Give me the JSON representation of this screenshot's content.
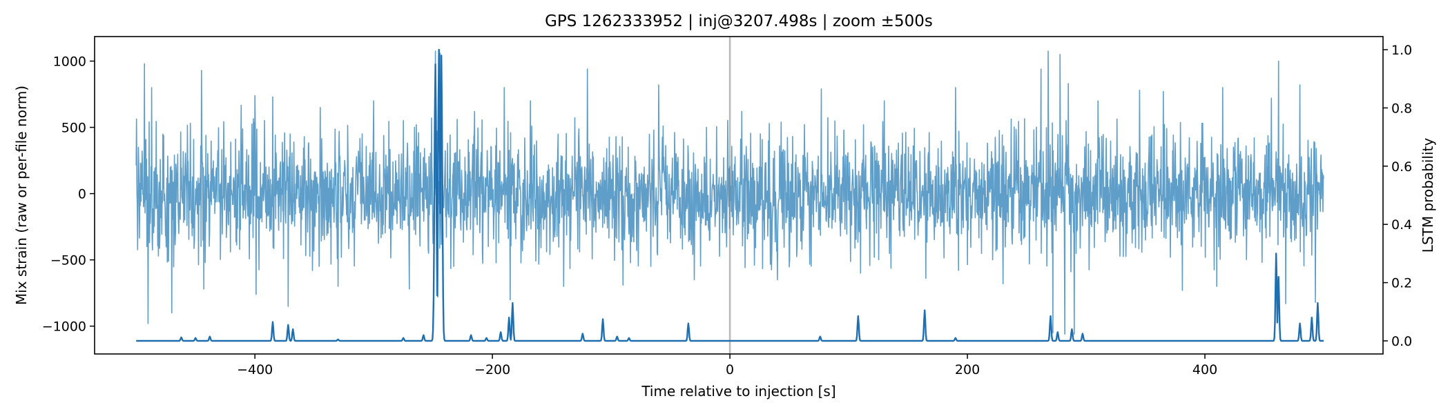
{
  "chart_data": {
    "type": "line",
    "title": "GPS 1262333952 | inj@3207.498s | zoom ±500s",
    "xlabel": "Time relative to injection [s]",
    "ylabel": "Mix strain (raw or per-file norm)",
    "y2label": "LSTM probability",
    "xlim": [
      -535,
      550
    ],
    "ylim": [
      -1210,
      1185
    ],
    "y2lim": [
      -0.045,
      1.045
    ],
    "x_ticks": [
      -400,
      -200,
      0,
      200,
      400
    ],
    "x_tick_labels": [
      "−400",
      "−200",
      "0",
      "200",
      "400"
    ],
    "y_ticks": [
      1000,
      500,
      0,
      -500,
      -1000
    ],
    "y_tick_labels": [
      "1000",
      "500",
      "0",
      "−500",
      "−1000"
    ],
    "y2_ticks": [
      0.0,
      0.2,
      0.4,
      0.6,
      0.8,
      1.0
    ],
    "y2_tick_labels": [
      "0.0",
      "0.2",
      "0.4",
      "0.6",
      "0.8",
      "1.0"
    ],
    "injection_marker_x": 0,
    "series": [
      {
        "axis": "left",
        "color": "#5f9ec9",
        "x_range": [
          -500,
          500
        ],
        "description_band": {
          "typical_upper": 450,
          "typical_lower": -420
        },
        "spikes": [
          {
            "x": -493,
            "y": 980
          },
          {
            "x": -490,
            "y": -980
          },
          {
            "x": -487,
            "y": 800
          },
          {
            "x": -470,
            "y": -900
          },
          {
            "x": -445,
            "y": 930
          },
          {
            "x": -443,
            "y": -720
          },
          {
            "x": -400,
            "y": 740
          },
          {
            "x": -399,
            "y": -760
          },
          {
            "x": -385,
            "y": 730
          },
          {
            "x": -372,
            "y": -850
          },
          {
            "x": -345,
            "y": 650
          },
          {
            "x": -330,
            "y": -700
          },
          {
            "x": -300,
            "y": 700
          },
          {
            "x": -270,
            "y": -720
          },
          {
            "x": -248,
            "y": 1075
          },
          {
            "x": -246,
            "y": -780
          },
          {
            "x": -244,
            "y": 1060
          },
          {
            "x": -215,
            "y": 620
          },
          {
            "x": -190,
            "y": 800
          },
          {
            "x": -185,
            "y": -800
          },
          {
            "x": -168,
            "y": 700
          },
          {
            "x": -140,
            "y": -700
          },
          {
            "x": -120,
            "y": 940
          },
          {
            "x": -90,
            "y": -690
          },
          {
            "x": -60,
            "y": 820
          },
          {
            "x": -30,
            "y": -650
          },
          {
            "x": 10,
            "y": 620
          },
          {
            "x": 40,
            "y": -650
          },
          {
            "x": 77,
            "y": 790
          },
          {
            "x": 110,
            "y": -600
          },
          {
            "x": 130,
            "y": 700
          },
          {
            "x": 165,
            "y": -640
          },
          {
            "x": 190,
            "y": 800
          },
          {
            "x": 230,
            "y": -680
          },
          {
            "x": 262,
            "y": 940
          },
          {
            "x": 268,
            "y": 1075
          },
          {
            "x": 272,
            "y": -1050
          },
          {
            "x": 278,
            "y": 1050
          },
          {
            "x": 282,
            "y": -1060
          },
          {
            "x": 285,
            "y": 830
          },
          {
            "x": 290,
            "y": -1060
          },
          {
            "x": 310,
            "y": 700
          },
          {
            "x": 345,
            "y": 780
          },
          {
            "x": 365,
            "y": 770
          },
          {
            "x": 381,
            "y": -730
          },
          {
            "x": 410,
            "y": -700
          },
          {
            "x": 415,
            "y": 800
          },
          {
            "x": 456,
            "y": 720
          },
          {
            "x": 462,
            "y": 1000
          },
          {
            "x": 468,
            "y": -830
          },
          {
            "x": 480,
            "y": 820
          },
          {
            "x": 493,
            "y": -820
          }
        ]
      },
      {
        "axis": "right",
        "color": "#1f6fb0",
        "baseline": 0.0,
        "peaks": [
          {
            "x": -462,
            "y": 0.012
          },
          {
            "x": -450,
            "y": 0.01
          },
          {
            "x": -438,
            "y": 0.015
          },
          {
            "x": -385,
            "y": 0.065
          },
          {
            "x": -372,
            "y": 0.055
          },
          {
            "x": -368,
            "y": 0.04
          },
          {
            "x": -330,
            "y": 0.005
          },
          {
            "x": -275,
            "y": 0.01
          },
          {
            "x": -258,
            "y": 0.02
          },
          {
            "x": -248,
            "y": 0.95
          },
          {
            "x": -245,
            "y": 1.0
          },
          {
            "x": -243,
            "y": 0.98
          },
          {
            "x": -218,
            "y": 0.02
          },
          {
            "x": -205,
            "y": 0.01
          },
          {
            "x": -193,
            "y": 0.03
          },
          {
            "x": -186,
            "y": 0.08
          },
          {
            "x": -183,
            "y": 0.13
          },
          {
            "x": -124,
            "y": 0.025
          },
          {
            "x": -107,
            "y": 0.075
          },
          {
            "x": -95,
            "y": 0.015
          },
          {
            "x": -85,
            "y": 0.01
          },
          {
            "x": -35,
            "y": 0.06
          },
          {
            "x": 76,
            "y": 0.015
          },
          {
            "x": 108,
            "y": 0.085
          },
          {
            "x": 164,
            "y": 0.105
          },
          {
            "x": 190,
            "y": 0.01
          },
          {
            "x": 270,
            "y": 0.085
          },
          {
            "x": 276,
            "y": 0.03
          },
          {
            "x": 288,
            "y": 0.04
          },
          {
            "x": 297,
            "y": 0.025
          },
          {
            "x": 460,
            "y": 0.3
          },
          {
            "x": 462,
            "y": 0.22
          },
          {
            "x": 480,
            "y": 0.06
          },
          {
            "x": 490,
            "y": 0.08
          },
          {
            "x": 495,
            "y": 0.13
          }
        ]
      }
    ]
  }
}
